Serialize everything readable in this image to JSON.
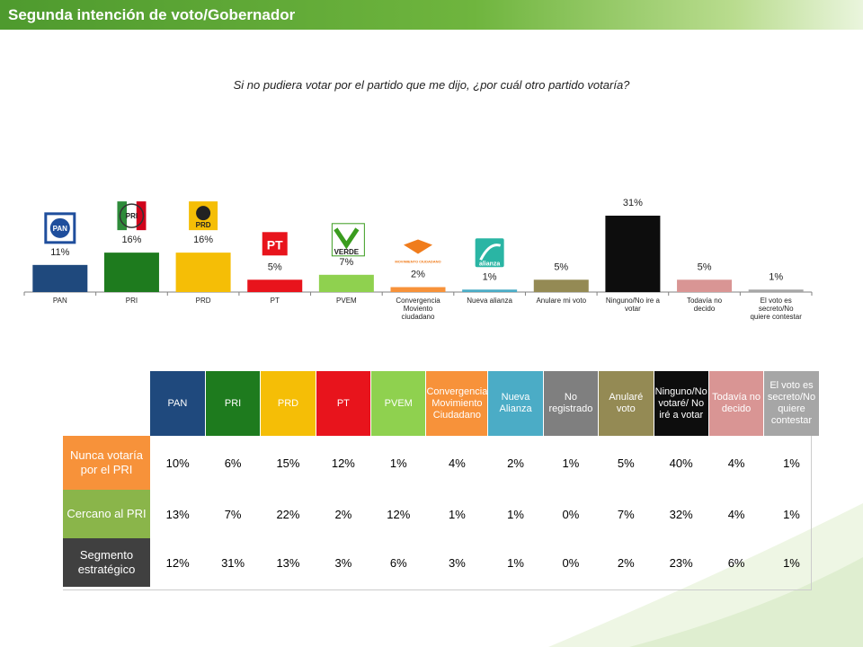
{
  "header": {
    "title": "Segunda intención de voto/Gobernador"
  },
  "chart_data": {
    "type": "bar",
    "title": "Si no pudiera votar por el partido que me dijo, ¿por cuál otro partido votaría?",
    "categories": [
      "PAN",
      "PRI",
      "PRD",
      "PT",
      "PVEM",
      "Convergencia Moviento ciudadano",
      "Nueva alianza",
      "Anulare mi voto",
      "Ninguno/No ire a votar",
      "Todavía no decido",
      "El voto es secreto/No quiere contestar"
    ],
    "values": [
      11,
      16,
      16,
      5,
      7,
      2,
      1,
      5,
      31,
      5,
      1
    ],
    "value_labels": [
      "11%",
      "16%",
      "16%",
      "5%",
      "7%",
      "2%",
      "1%",
      "5%",
      "31%",
      "5%",
      "1%"
    ],
    "colors": [
      "#1f497d",
      "#1e7b1e",
      "#f5be06",
      "#e8141c",
      "#8fd14f",
      "#f7923a",
      "#4bacc6",
      "#948a54",
      "#0d0d0d",
      "#d99594",
      "#a6a6a6"
    ],
    "ylim": [
      0,
      31
    ],
    "logos": [
      {
        "name": "pan-logo",
        "text": "PAN",
        "color": "#1f4e9c"
      },
      {
        "name": "pri-logo",
        "text": "PRI",
        "color": "#c00000"
      },
      {
        "name": "prd-logo",
        "text": "PRD",
        "color": "#f5be06"
      },
      {
        "name": "pt-logo",
        "text": "PT",
        "color": "#e8141c"
      },
      {
        "name": "pvem-logo",
        "text": "VERDE",
        "color": "#3a9c1e"
      },
      {
        "name": "movimiento-ciudadano-logo",
        "text": "MOVIMIENTO CIUDADANO",
        "color": "#f07c1c"
      },
      {
        "name": "nueva-alianza-logo",
        "text": "alianza",
        "color": "#2ab5a4"
      }
    ]
  },
  "table": {
    "headers": [
      {
        "label": "PAN",
        "bg": "#1f497d"
      },
      {
        "label": "PRI",
        "bg": "#1e7b1e"
      },
      {
        "label": "PRD",
        "bg": "#f5be06"
      },
      {
        "label": "PT",
        "bg": "#e8141c"
      },
      {
        "label": "PVEM",
        "bg": "#8fd14f"
      },
      {
        "label": "Convergencia Movimiento Ciudadano",
        "bg": "#f7923a"
      },
      {
        "label": "Nueva Alianza",
        "bg": "#4bacc6"
      },
      {
        "label": "No registrado",
        "bg": "#7f7f7f"
      },
      {
        "label": "Anularé voto",
        "bg": "#948a54"
      },
      {
        "label": "Ninguno/No votaré/ No iré a votar",
        "bg": "#0d0d0d"
      },
      {
        "label": "Todavía no decido",
        "bg": "#d99594"
      },
      {
        "label": "El voto es secreto/No quiere contestar",
        "bg": "#a6a6a6"
      }
    ],
    "rows": [
      {
        "label": "Nunca votaría por el PRI",
        "bg": "#f7923a",
        "values": [
          "10%",
          "6%",
          "15%",
          "12%",
          "1%",
          "4%",
          "2%",
          "1%",
          "5%",
          "40%",
          "4%",
          "1%"
        ]
      },
      {
        "label": "Cercano al PRI",
        "bg": "#8ab54a",
        "values": [
          "13%",
          "7%",
          "22%",
          "2%",
          "12%",
          "1%",
          "1%",
          "0%",
          "7%",
          "32%",
          "4%",
          "1%"
        ]
      },
      {
        "label": "Segmento estratégico",
        "bg": "#404040",
        "values": [
          "12%",
          "31%",
          "13%",
          "3%",
          "6%",
          "3%",
          "1%",
          "0%",
          "2%",
          "23%",
          "6%",
          "1%"
        ]
      }
    ]
  }
}
